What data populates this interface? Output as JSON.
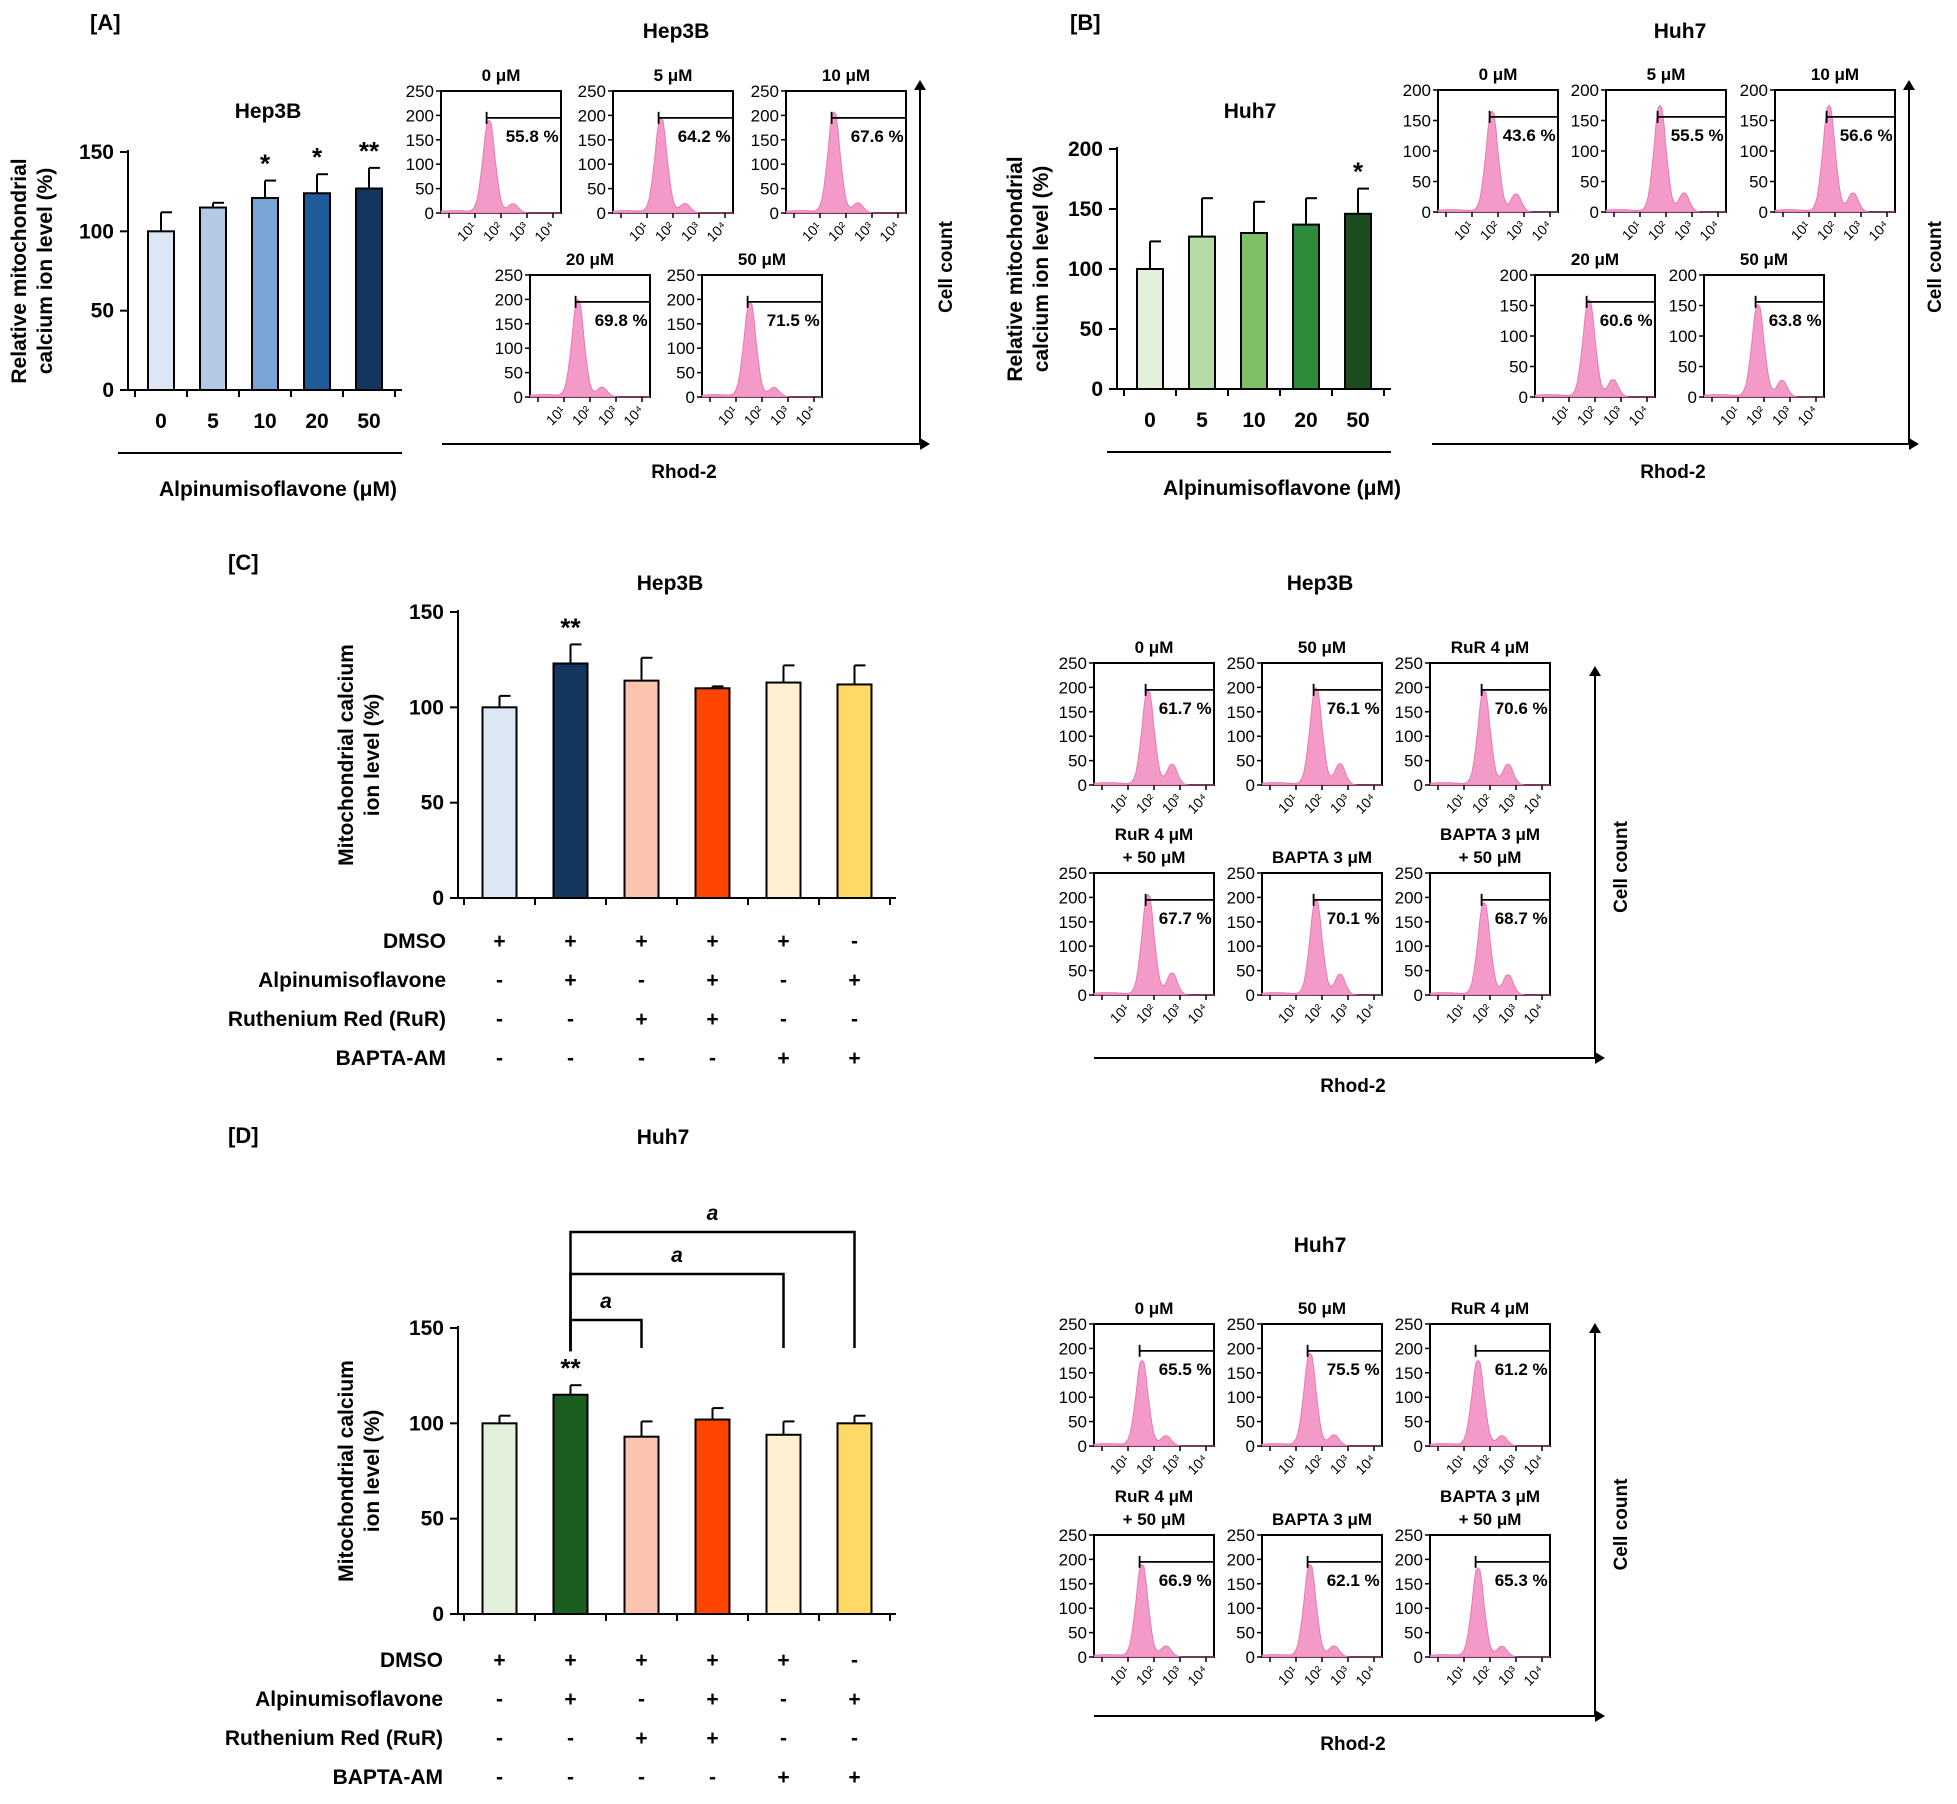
{
  "panel_labels": [
    "[A]",
    "[B]",
    "[C]",
    "[D]"
  ],
  "flow_axis": {
    "x_label": "Rhod-2",
    "y_label": "Cell count",
    "x_ticks": [
      "10⁰",
      "10¹",
      "10²",
      "10³",
      "10⁴"
    ]
  },
  "hist_color": "#f49ac8",
  "pct_color": "#ff33cc",
  "chart_data": [
    {
      "id": "A_bar",
      "type": "bar",
      "title": "Hep3B",
      "ylabel": "Relative mitochondrial calcium ion level (%)",
      "xlabel": "Alpinumisoflavone (μM)",
      "categories": [
        "0",
        "5",
        "10",
        "20",
        "50"
      ],
      "values": [
        100,
        115,
        121,
        124,
        127
      ],
      "errors": [
        12,
        3,
        11,
        12,
        13
      ],
      "sig": [
        "",
        "",
        "*",
        "*",
        "**"
      ],
      "colors": [
        "#dce6f4",
        "#b4c9e6",
        "#7aa3d6",
        "#1f5c99",
        "#13365f"
      ],
      "ylim": [
        0,
        150
      ],
      "yticks": [
        0,
        50,
        100,
        150
      ]
    },
    {
      "id": "B_bar",
      "type": "bar",
      "title": "Huh7",
      "ylabel": "Relative mitochondrial calcium ion level (%)",
      "xlabel": "Alpinumisoflavone (μM)",
      "categories": [
        "0",
        "5",
        "10",
        "20",
        "50"
      ],
      "values": [
        100,
        127,
        130,
        137,
        146
      ],
      "errors": [
        23,
        32,
        26,
        22,
        21
      ],
      "sig": [
        "",
        "",
        "",
        "",
        "*"
      ],
      "colors": [
        "#e3f1dc",
        "#b5dca4",
        "#7ebf68",
        "#2e8b3a",
        "#1b4d1f"
      ],
      "ylim": [
        0,
        200
      ],
      "yticks": [
        0,
        50,
        100,
        150,
        200
      ]
    },
    {
      "id": "C_bar",
      "type": "bar",
      "title": "Hep3B",
      "ylabel": "Mitochondrial calcium ion level (%)",
      "values": [
        100,
        123,
        114,
        110,
        113,
        112
      ],
      "errors": [
        6,
        10,
        12,
        1,
        9,
        10
      ],
      "sig": [
        "",
        "**",
        "",
        "",
        "",
        ""
      ],
      "colors": [
        "#dce6f4",
        "#13365f",
        "#fbc4ae",
        "#ff4500",
        "#fff0d2",
        "#ffd966"
      ],
      "ylim": [
        0,
        150
      ],
      "yticks": [
        0,
        50,
        100,
        150
      ],
      "treatments": [
        {
          "label": "DMSO",
          "signs": [
            "+",
            "+",
            "+",
            "+",
            "+",
            "-"
          ]
        },
        {
          "label": "Alpinumisoflavone",
          "signs": [
            "-",
            "+",
            "-",
            "+",
            "-",
            "+"
          ]
        },
        {
          "label": "Ruthenium Red (RuR)",
          "signs": [
            "-",
            "-",
            "+",
            "+",
            "-",
            "-"
          ]
        },
        {
          "label": "BAPTA-AM",
          "signs": [
            "-",
            "-",
            "-",
            "-",
            "+",
            "+"
          ]
        }
      ]
    },
    {
      "id": "D_bar",
      "type": "bar",
      "title": "Huh7",
      "ylabel": "Mitochondrial calcium ion level (%)",
      "values": [
        100,
        115,
        93,
        102,
        94,
        100
      ],
      "errors": [
        4,
        5,
        8,
        6,
        7,
        4
      ],
      "sig": [
        "",
        "**",
        "",
        "",
        "",
        ""
      ],
      "colors": [
        "#e3f1dc",
        "#1b5e20",
        "#fbc4ae",
        "#ff4500",
        "#fff0d2",
        "#ffd966"
      ],
      "ylim": [
        0,
        150
      ],
      "yticks": [
        0,
        50,
        100,
        150
      ],
      "comparisons": [
        {
          "from": 1,
          "to": 2,
          "label": "a"
        },
        {
          "from": 1,
          "to": 4,
          "label": "a"
        },
        {
          "from": 1,
          "to": 5,
          "label": "a"
        }
      ],
      "treatments": [
        {
          "label": "DMSO",
          "signs": [
            "+",
            "+",
            "+",
            "+",
            "+",
            "-"
          ]
        },
        {
          "label": "Alpinumisoflavone",
          "signs": [
            "-",
            "+",
            "-",
            "+",
            "-",
            "+"
          ]
        },
        {
          "label": "Ruthenium Red (RuR)",
          "signs": [
            "-",
            "-",
            "+",
            "+",
            "-",
            "-"
          ]
        },
        {
          "label": "BAPTA-AM",
          "signs": [
            "-",
            "-",
            "-",
            "-",
            "+",
            "+"
          ]
        }
      ]
    },
    {
      "id": "A_flow",
      "type": "histogram",
      "title": "Hep3B",
      "yticks": [
        0,
        50,
        100,
        150,
        200,
        250
      ],
      "ymax": 250,
      "panels": [
        {
          "label": "0 μM",
          "percent": "55.8 %"
        },
        {
          "label": "5 μM",
          "percent": "64.2 %"
        },
        {
          "label": "10 μM",
          "percent": "67.6 %"
        },
        {
          "label": "20 μM",
          "percent": "69.8 %"
        },
        {
          "label": "50 μM",
          "percent": "71.5 %"
        }
      ]
    },
    {
      "id": "B_flow",
      "type": "histogram",
      "title": "Huh7",
      "yticks": [
        0,
        50,
        100,
        150,
        200
      ],
      "ymax": 200,
      "panels": [
        {
          "label": "0 μM",
          "percent": "43.6 %"
        },
        {
          "label": "5 μM",
          "percent": "55.5 %"
        },
        {
          "label": "10 μM",
          "percent": "56.6 %"
        },
        {
          "label": "20 μM",
          "percent": "60.6 %"
        },
        {
          "label": "50 μM",
          "percent": "63.8 %"
        }
      ]
    },
    {
      "id": "C_flow",
      "type": "histogram",
      "title": "Hep3B",
      "yticks": [
        0,
        50,
        100,
        150,
        200,
        250
      ],
      "ymax": 250,
      "panels": [
        {
          "label": "0 μM",
          "percent": "61.7 %"
        },
        {
          "label": "50 μM",
          "percent": "76.1 %"
        },
        {
          "label": "RuR  4 μM",
          "percent": "70.6 %"
        },
        {
          "label": "RuR  4 μM|+ 50 μM",
          "percent": "67.7 %"
        },
        {
          "label": "BAPTA  3 μM",
          "percent": "70.1 %"
        },
        {
          "label": "BAPTA  3 μM|+ 50 μM",
          "percent": "68.7 %"
        }
      ]
    },
    {
      "id": "D_flow",
      "type": "histogram",
      "title": "Huh7",
      "yticks": [
        0,
        50,
        100,
        150,
        200,
        250
      ],
      "ymax": 250,
      "panels": [
        {
          "label": "0 μM",
          "percent": "65.5 %"
        },
        {
          "label": "50 μM",
          "percent": "75.5 %"
        },
        {
          "label": "RuR  4 μM",
          "percent": "61.2 %"
        },
        {
          "label": "RuR  4 μM|+ 50 μM",
          "percent": "66.9 %"
        },
        {
          "label": "BAPTA  3 μM",
          "percent": "62.1 %"
        },
        {
          "label": "BAPTA  3 μM|+ 50 μM",
          "percent": "65.3 %"
        }
      ]
    }
  ]
}
